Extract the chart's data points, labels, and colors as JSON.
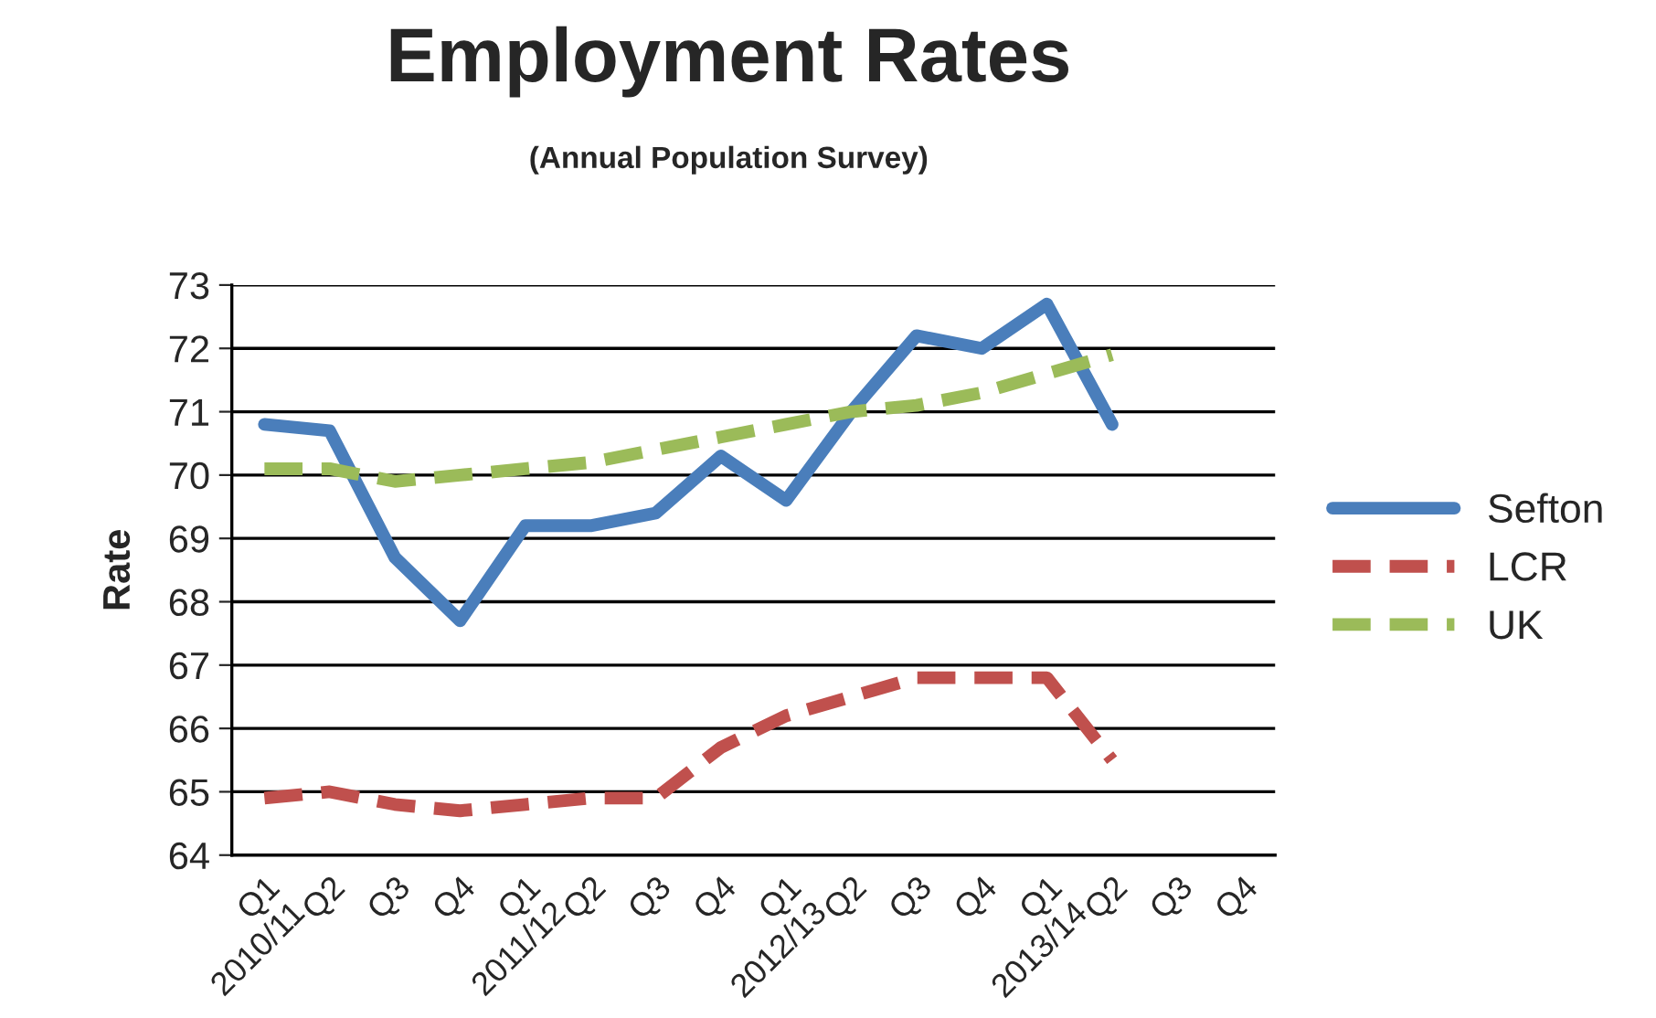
{
  "chart_data": {
    "type": "line",
    "title": "Employment Rates",
    "subtitle": "(Annual Population Survey)",
    "ylabel": "Rate",
    "categories": [
      "Q1\n2010/11",
      "Q2",
      "Q3",
      "Q4",
      "Q1\n2011/12",
      "Q2",
      "Q3",
      "Q4",
      "Q1\n2012/13",
      "Q2",
      "Q3",
      "Q4",
      "Q1\n2013/14",
      "Q2",
      "Q3",
      "Q4"
    ],
    "series": [
      {
        "name": "Sefton",
        "color": "#4a7ebb",
        "line_style": "solid",
        "values": [
          70.8,
          70.7,
          68.7,
          67.7,
          69.2,
          69.2,
          69.4,
          70.3,
          69.6,
          71.0,
          72.2,
          72.0,
          72.7,
          70.8,
          null,
          null
        ]
      },
      {
        "name": "LCR",
        "color": "#c0504d",
        "line_style": "dashed",
        "values": [
          64.9,
          65.0,
          64.8,
          64.7,
          64.8,
          64.9,
          64.9,
          65.7,
          66.2,
          66.5,
          66.8,
          66.8,
          66.8,
          65.5,
          null,
          null
        ]
      },
      {
        "name": "UK",
        "color": "#9bbb59",
        "line_style": "dashed",
        "values": [
          70.1,
          70.1,
          69.9,
          70.0,
          70.1,
          70.2,
          70.4,
          70.6,
          70.8,
          71.0,
          71.1,
          71.3,
          71.6,
          71.9,
          null,
          null
        ]
      }
    ],
    "ylim": [
      64,
      73
    ],
    "yticks": [
      64,
      65,
      66,
      67,
      68,
      69,
      70,
      71,
      72,
      73
    ],
    "grid": "y",
    "legend": "right",
    "marker": "none"
  }
}
